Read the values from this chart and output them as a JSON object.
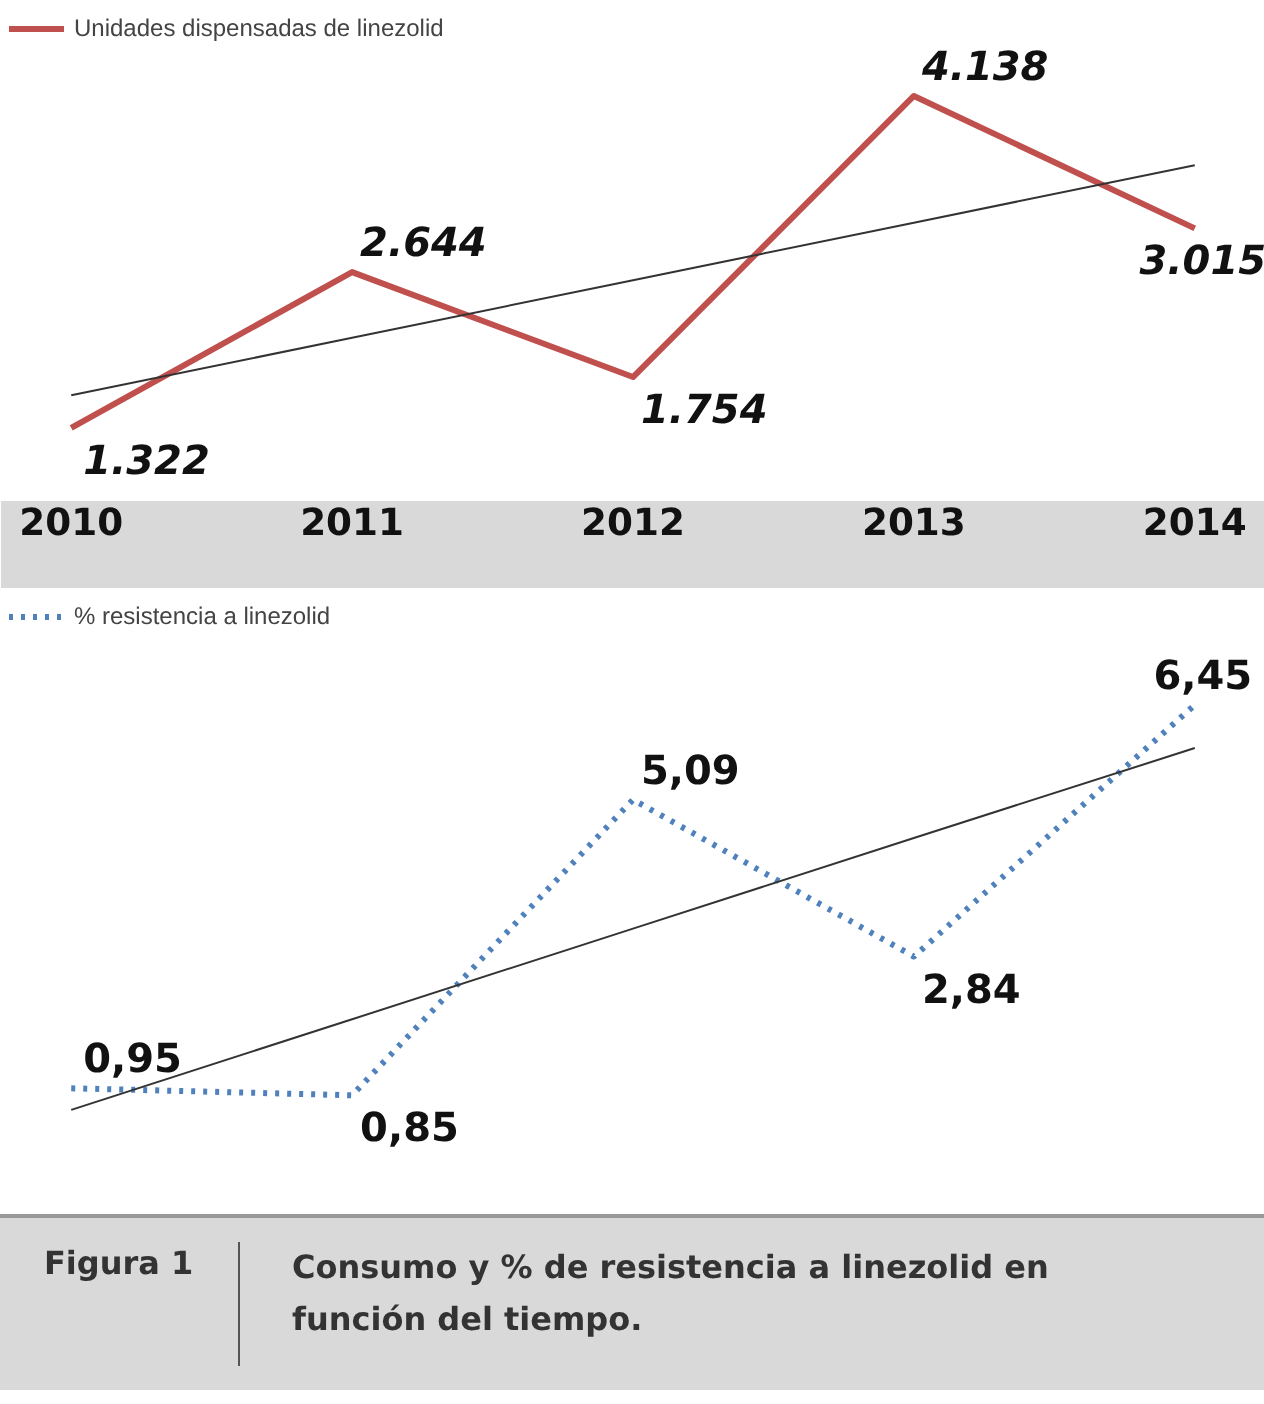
{
  "chart_data": [
    {
      "type": "line",
      "categories": [
        "2010",
        "2011",
        "2012",
        "2013",
        "2014"
      ],
      "legend": "top left",
      "grid": false,
      "tick_labels": "x",
      "marker": "none",
      "series": [
        {
          "name": "Unidades dispensadas de linezolid",
          "color": "#c0504d",
          "line_style": "solid",
          "values": [
            1322,
            2644,
            1754,
            4138,
            3015
          ],
          "value_labels": [
            "1.322",
            "2.644",
            "1.754",
            "4.138",
            "3.015"
          ]
        },
        {
          "type": "line",
          "color": "#333333",
          "line_style": "solid",
          "values": [
            1599,
            2087,
            2575,
            3063,
            3551
          ]
        }
      ]
    },
    {
      "type": "line",
      "categories": [
        "2010",
        "2011",
        "2012",
        "2013",
        "2014"
      ],
      "legend": "top left",
      "grid": false,
      "tick_labels": false,
      "marker": "none",
      "series": [
        {
          "name": "% resistencia a linezolid",
          "color": "#4f81bd",
          "line_style": "dotted",
          "values": [
            0.95,
            0.85,
            5.09,
            2.84,
            6.45
          ],
          "value_labels": [
            "0,95",
            "0,85",
            "5,09",
            "2,84",
            "6,45"
          ]
        },
        {
          "type": "line",
          "color": "#333333",
          "line_style": "solid",
          "values": [
            0.64,
            1.94,
            3.24,
            4.54,
            5.83
          ]
        }
      ],
      "annotations": [
        "Figura 1",
        "Consumo y % de resistencia a linezolid en función del tiempo."
      ]
    }
  ]
}
